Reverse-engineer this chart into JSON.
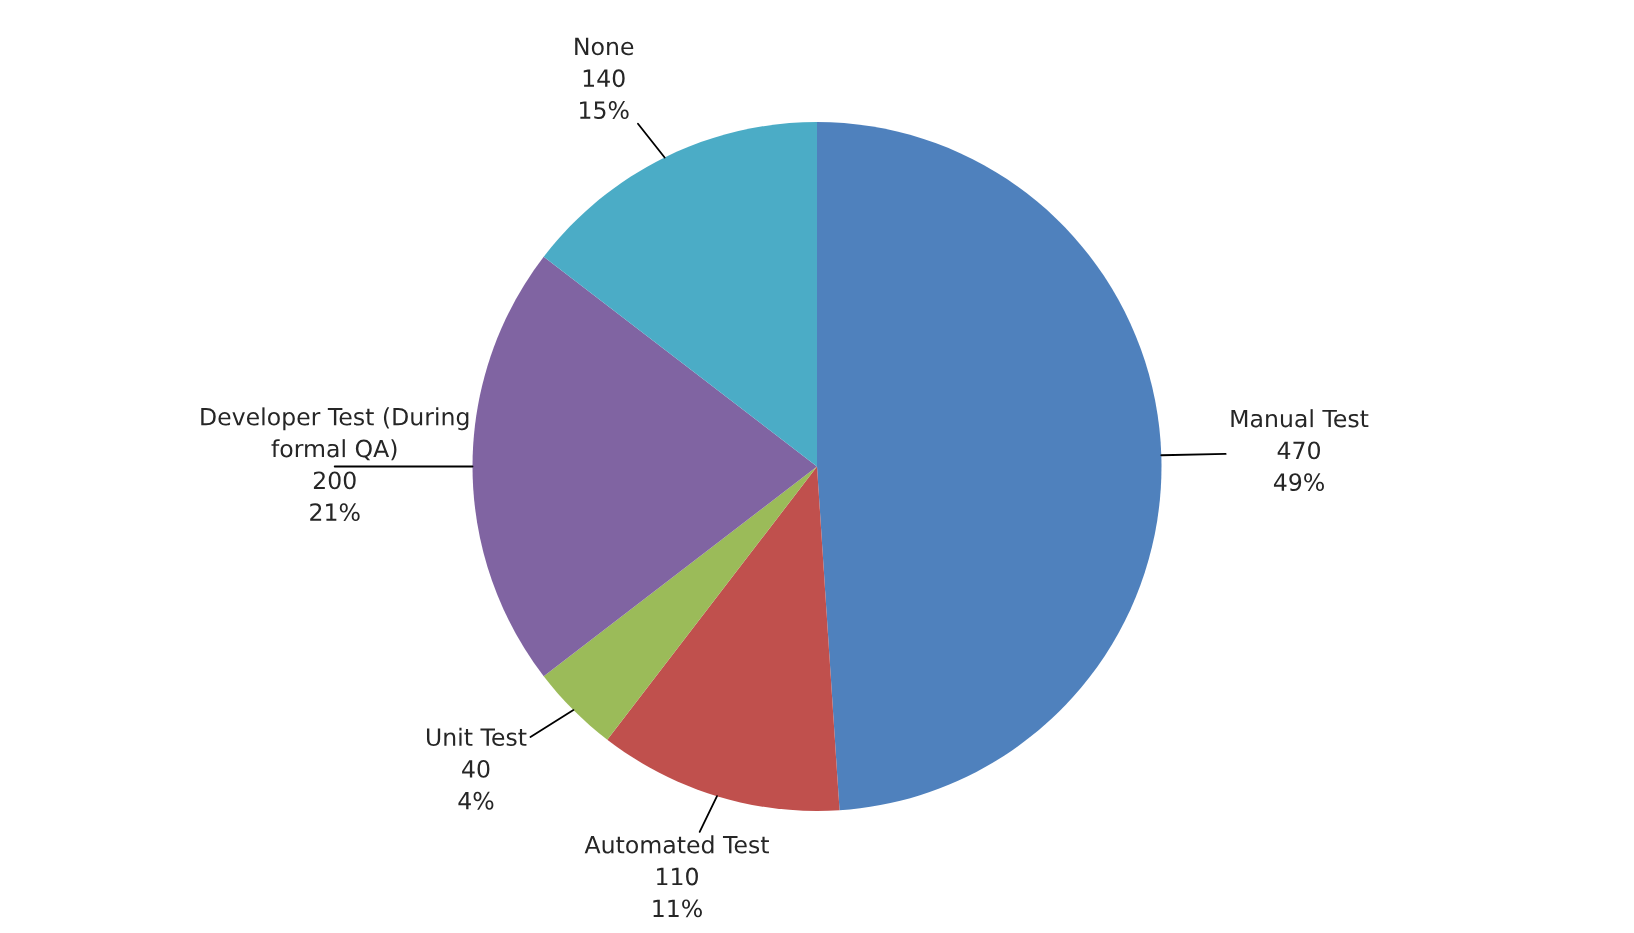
{
  "chart_data": {
    "type": "pie",
    "categories": [
      "Manual Test",
      "Automated Test",
      "Unit Test",
      "Developer Test (During\nformal QA)",
      "None"
    ],
    "values": [
      470,
      110,
      40,
      200,
      140
    ],
    "value_labels": [
      "470\n49%",
      "110\n11%",
      "40\n4%",
      "200\n21%",
      "140\n15%"
    ],
    "colors": [
      "#4f81bd",
      "#c0504d",
      "#9bbb59",
      "#8064a2",
      "#4bacc6"
    ],
    "legend": false
  }
}
